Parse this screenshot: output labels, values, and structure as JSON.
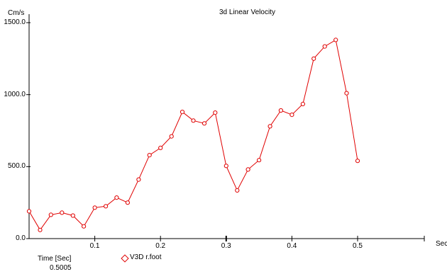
{
  "chart_data": {
    "type": "line",
    "title": "3d Linear Velocity",
    "ylabel": "Cm/s",
    "xlabel": "Sec",
    "xlim": [
      0,
      0.6
    ],
    "ylim": [
      0,
      1500
    ],
    "x_ticks": [
      "0.1",
      "0.2",
      "0.3",
      "0.4",
      "0.5"
    ],
    "y_ticks": [
      "0.0",
      "500.0",
      "1000.0",
      "1500.0"
    ],
    "series": [
      {
        "name": "V3D r.foot",
        "color": "#e00000",
        "x": [
          0.0,
          0.0167,
          0.0333,
          0.05,
          0.0667,
          0.0833,
          0.1,
          0.1167,
          0.1333,
          0.15,
          0.1667,
          0.1833,
          0.2,
          0.2167,
          0.2333,
          0.25,
          0.2667,
          0.2833,
          0.3,
          0.3167,
          0.3333,
          0.35,
          0.3667,
          0.3833,
          0.4,
          0.4167,
          0.4333,
          0.45,
          0.4667,
          0.4833,
          0.5
        ],
        "y": [
          190,
          60,
          165,
          180,
          160,
          85,
          215,
          225,
          285,
          250,
          410,
          580,
          630,
          710,
          880,
          820,
          800,
          875,
          505,
          335,
          480,
          545,
          780,
          890,
          860,
          935,
          1250,
          1335,
          1380,
          1010,
          540
        ]
      }
    ]
  },
  "footer": {
    "time_label": "Time [Sec]",
    "time_value": "0.5005"
  },
  "legend": {
    "entry": "V3D r.foot"
  }
}
